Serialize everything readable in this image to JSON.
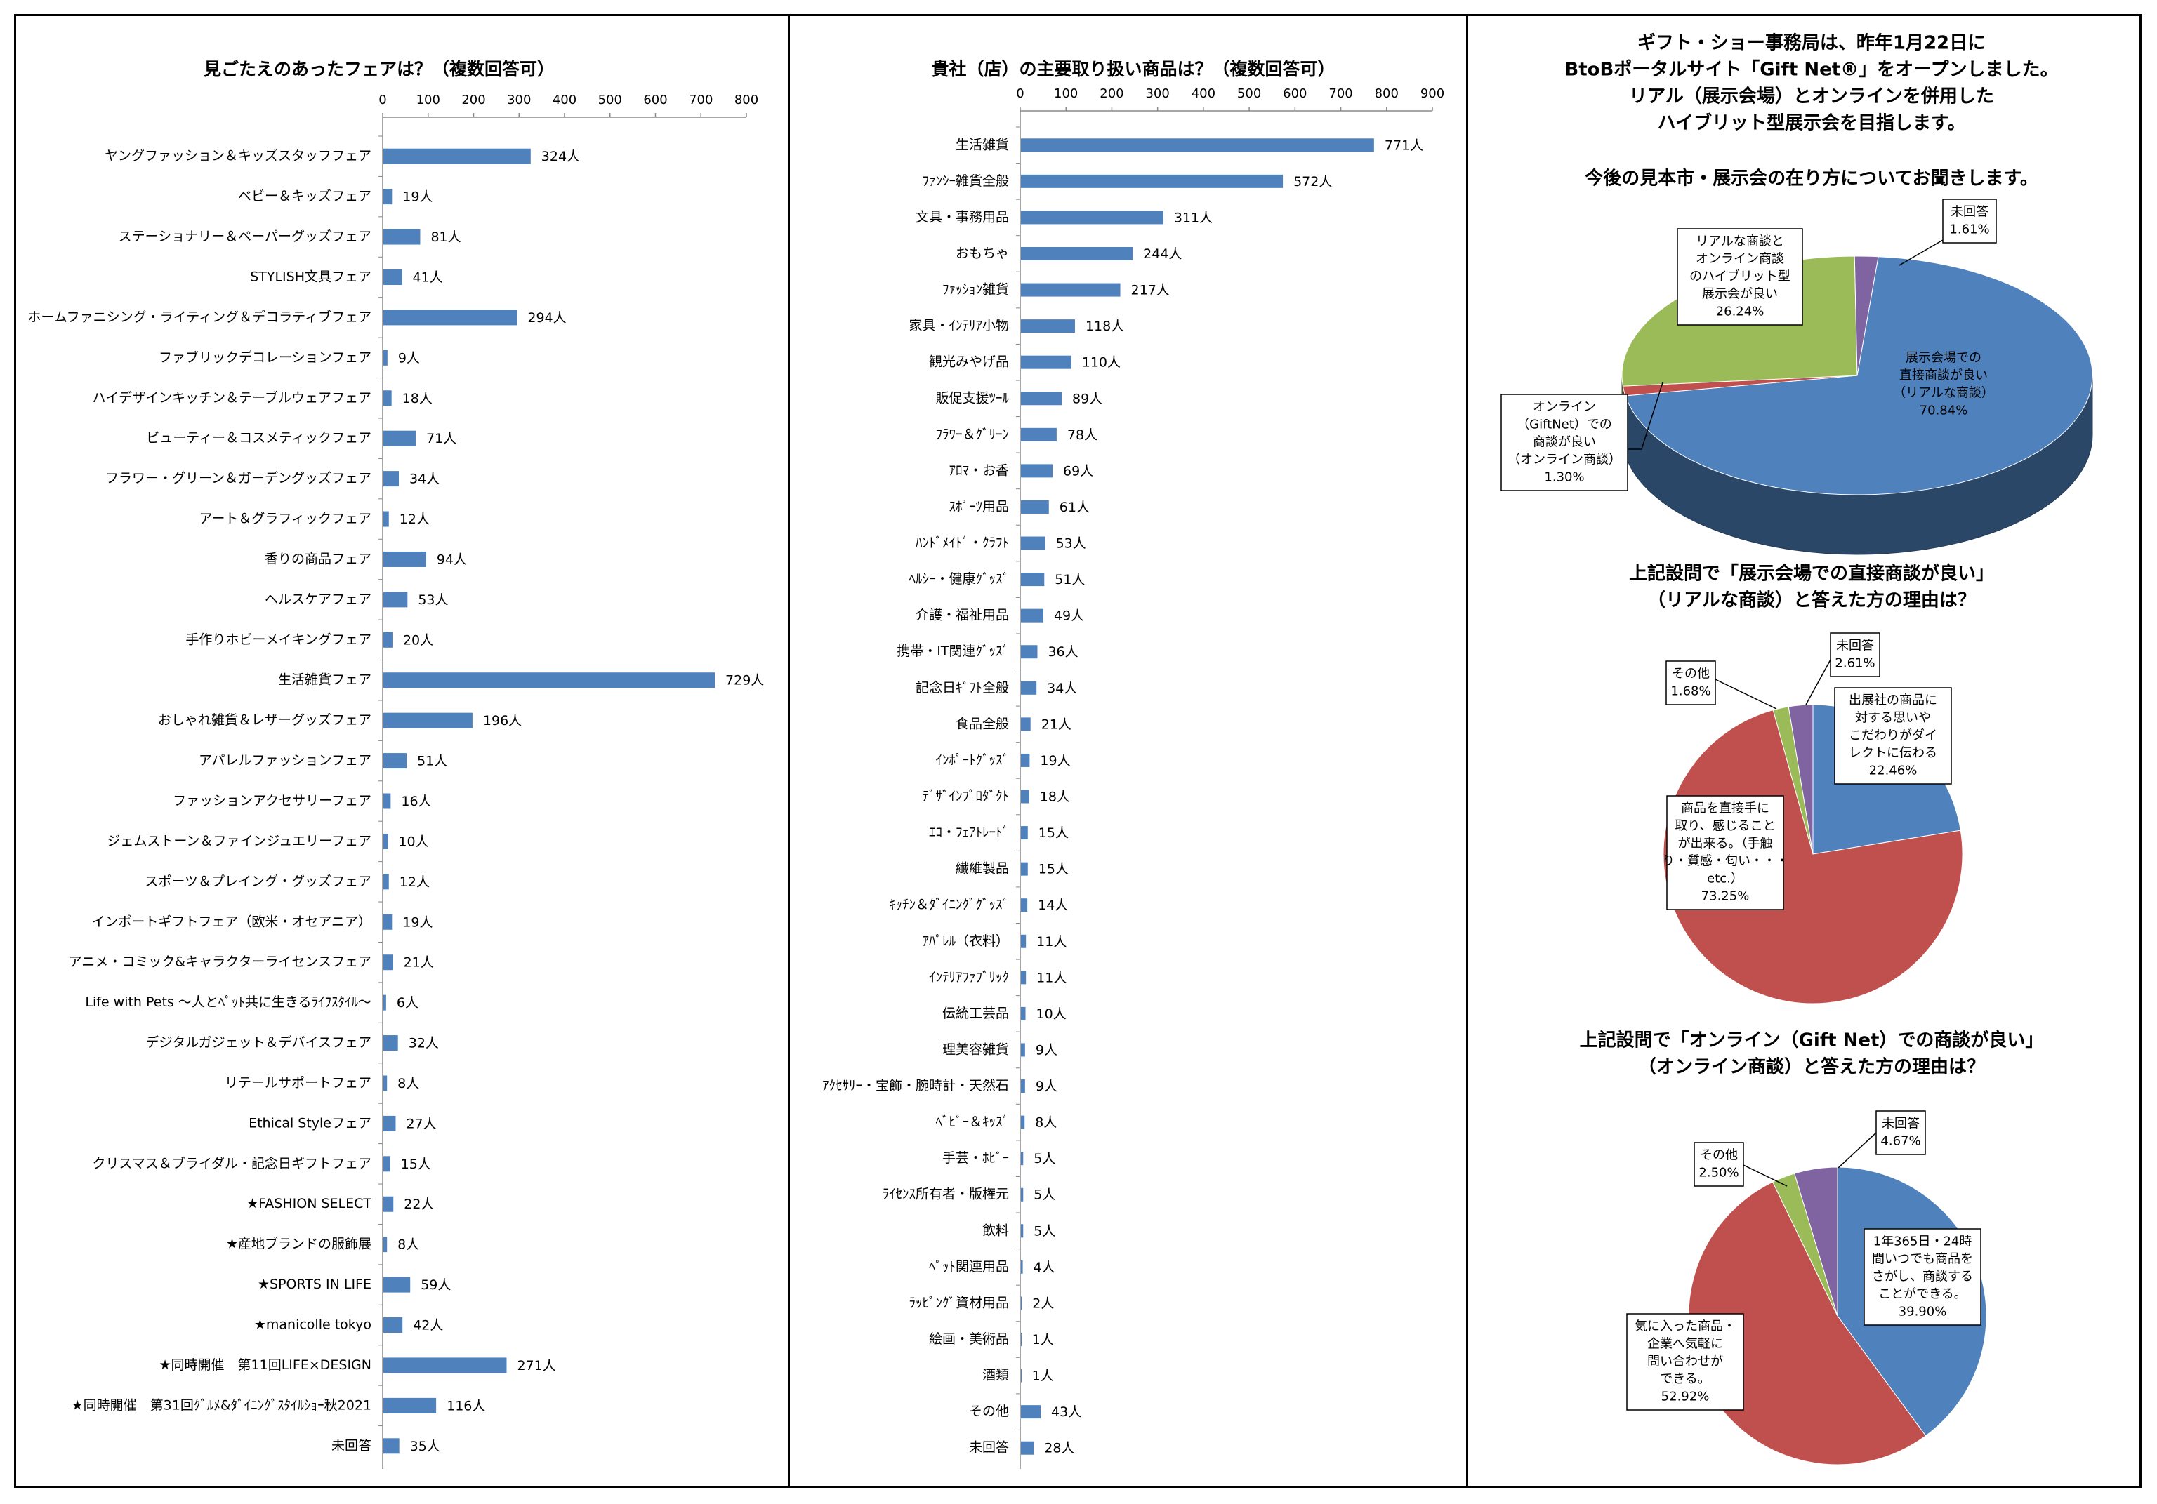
{
  "left_chart": {
    "title": "見ごたえのあったフェアは？（複数回答可）",
    "unit": "人",
    "ticks": [
      0,
      100,
      200,
      300,
      400,
      500,
      600,
      700,
      800
    ],
    "categories": [
      "ヤングファッション＆キッズスタッフフェア",
      "ベビー＆キッズフェア",
      "ステーショナリー＆ペーパーグッズフェア",
      "STYLISH文具フェア",
      "ホームファニシング・ライティング＆デコラティブフェア",
      "ファブリックデコレーションフェア",
      "ハイデザインキッチン＆テーブルウェアフェア",
      "ビューティー＆コスメティックフェア",
      "フラワー・グリーン＆ガーデングッズフェア",
      "アート＆グラフィックフェア",
      "香りの商品フェア",
      "ヘルスケアフェア",
      "手作りホビーメイキングフェア",
      "生活雑貨フェア",
      "おしゃれ雑貨＆レザーグッズフェア",
      "アパレルファッションフェア",
      "ファッションアクセサリーフェア",
      "ジェムストーン＆ファインジュエリーフェア",
      "スポーツ＆プレイング・グッズフェア",
      "インポートギフトフェア（欧米・オセアニア）",
      "アニメ・コミック&キャラクターライセンスフェア",
      "Life with Pets 〜人とﾍﾟｯﾄ共に生きるﾗｲﾌｽﾀｲﾙ〜",
      "デジタルガジェット＆デバイスフェア",
      "リテールサポートフェア",
      "Ethical Styleフェア",
      "クリスマス＆ブライダル・記念日ギフトフェア",
      "★FASHION SELECT",
      "★産地ブランドの服飾展",
      "★SPORTS IN LIFE",
      "★manicolle tokyo",
      "★同時開催　第11回LIFE×DESIGN",
      "★同時開催　第31回ｸﾞﾙﾒ&ﾀﾞｲﾆﾝｸﾞｽﾀｲﾙｼｮｰ秋2021",
      "未回答"
    ],
    "values": [
      324,
      19,
      81,
      41,
      294,
      9,
      18,
      71,
      34,
      12,
      94,
      53,
      20,
      729,
      196,
      51,
      16,
      10,
      12,
      19,
      21,
      6,
      32,
      8,
      27,
      15,
      22,
      8,
      59,
      42,
      271,
      116,
      35
    ]
  },
  "middle_chart": {
    "title": "貴社（店）の主要取り扱い商品は？（複数回答可）",
    "unit": "人",
    "ticks": [
      0,
      100,
      200,
      300,
      400,
      500,
      600,
      700,
      800,
      900
    ],
    "categories": [
      "生活雑貨",
      "ﾌｧﾝｼｰ雑貨全般",
      "文具・事務用品",
      "おもちゃ",
      "ﾌｧｯｼｮﾝ雑貨",
      "家具・ｲﾝﾃﾘｱ小物",
      "観光みやげ品",
      "販促支援ﾂｰﾙ",
      "ﾌﾗﾜｰ＆ｸﾞﾘｰﾝ",
      "ｱﾛﾏ・お香",
      "ｽﾎﾟｰﾂ用品",
      "ﾊﾝﾄﾞﾒｲﾄﾞ・ｸﾗﾌﾄ",
      "ﾍﾙｼｰ・健康ｸﾞｯｽﾞ",
      "介護・福祉用品",
      "携帯・IT関連ｸﾞｯｽﾞ",
      "記念日ｷﾞﾌﾄ全般",
      "食品全般",
      "ｲﾝﾎﾟｰﾄｸﾞｯｽﾞ",
      "ﾃﾞｻﾞｲﾝﾌﾟﾛﾀﾞｸﾄ",
      "ｴｺ・ﾌｪｱﾄﾚｰﾄﾞ",
      "繊維製品",
      "ｷｯﾁﾝ＆ﾀﾞｲﾆﾝｸﾞｸﾞｯｽﾞ",
      "ｱﾊﾟﾚﾙ（衣料）",
      "ｲﾝﾃﾘｱﾌｧﾌﾞﾘｯｸ",
      "伝統工芸品",
      "理美容雑貨",
      "ｱｸｾｻﾘｰ・宝飾・腕時計・天然石",
      "ﾍﾞﾋﾞｰ＆ｷｯｽﾞ",
      "手芸・ﾎﾋﾞｰ",
      "ﾗｲｾﾝｽ所有者・版権元",
      "飲料",
      "ﾍﾟｯﾄ関連用品",
      "ﾗｯﾋﾟﾝｸﾞ資材用品",
      "絵画・美術品",
      "酒類",
      "その他",
      "未回答"
    ],
    "values": [
      771,
      572,
      311,
      244,
      217,
      118,
      110,
      89,
      78,
      69,
      61,
      53,
      51,
      49,
      36,
      34,
      21,
      19,
      18,
      15,
      15,
      14,
      11,
      11,
      10,
      9,
      9,
      8,
      5,
      5,
      5,
      4,
      2,
      1,
      1,
      43,
      28
    ]
  },
  "right": {
    "intro": [
      "ギフト・ショー事務局は、昨年1月22日に",
      "BtoBポータルサイト「Gift Net®」をオープンしました。",
      "リアル（展示会場）とオンラインを併用した",
      "ハイブリット型展示会を目指します。"
    ],
    "pie1": {
      "title": "今後の見本市・展示会の在り方についてお聞きします。",
      "slices": [
        {
          "label": [
            "展示会場での",
            "直接商談が良い",
            "（リアルな商談）",
            "70.84%"
          ],
          "value": 70.84,
          "color": "#4f81bd"
        },
        {
          "label": [
            "オンライン",
            "（GiftNet）での",
            "商談が良い",
            "（オンライン商談）",
            "1.30%"
          ],
          "value": 1.3,
          "color": "#c0504d"
        },
        {
          "label": [
            "リアルな商談と",
            "オンライン商談",
            "のハイブリット型",
            "展示会が良い",
            "26.24%"
          ],
          "value": 26.24,
          "color": "#9bbb59"
        },
        {
          "label": [
            "未回答",
            "1.61%"
          ],
          "value": 1.61,
          "color": "#8064a2"
        }
      ]
    },
    "pie2": {
      "title": [
        "上記設問で「展示会場での直接商談が良い」",
        "（リアルな商談）と答えた方の理由は？"
      ],
      "slices": [
        {
          "label": [
            "出展社の商品に",
            "対する思いや",
            "こだわりがダイ",
            "レクトに伝わる",
            "22.46%"
          ],
          "value": 22.46,
          "color": "#4f81bd"
        },
        {
          "label": [
            "商品を直接手に",
            "取り、感じること",
            "が出来る。（手触",
            "り・質感・匂い・・・",
            "etc.）",
            "73.25%"
          ],
          "value": 73.25,
          "color": "#c0504d"
        },
        {
          "label": [
            "その他",
            "1.68%"
          ],
          "value": 1.68,
          "color": "#9bbb59"
        },
        {
          "label": [
            "未回答",
            "2.61%"
          ],
          "value": 2.61,
          "color": "#8064a2"
        }
      ]
    },
    "pie3": {
      "title": [
        "上記設問で「オンライン（Gift Net）での商談が良い」",
        "（オンライン商談）と答えた方の理由は？"
      ],
      "slices": [
        {
          "label": [
            "1年365日・24時",
            "間いつでも商品を",
            "さがし、商談する",
            "ことができる。",
            "39.90%"
          ],
          "value": 39.9,
          "color": "#4f81bd"
        },
        {
          "label": [
            "気に入った商品・",
            "企業へ気軽に",
            "問い合わせが",
            "できる。",
            "52.92%"
          ],
          "value": 52.92,
          "color": "#c0504d"
        },
        {
          "label": [
            "その他",
            "2.50%"
          ],
          "value": 2.5,
          "color": "#9bbb59"
        },
        {
          "label": [
            "未回答",
            "4.67%"
          ],
          "value": 4.67,
          "color": "#8064a2"
        }
      ]
    }
  },
  "chart_data": [
    {
      "type": "bar",
      "orientation": "horizontal",
      "title": "見ごたえのあったフェアは？（複数回答可）",
      "xlim": [
        0,
        800
      ]
    },
    {
      "type": "bar",
      "orientation": "horizontal",
      "title": "貴社（店）の主要取り扱い商品は？（複数回答可）",
      "xlim": [
        0,
        900
      ]
    },
    {
      "type": "pie",
      "title": "今後の見本市・展示会の在り方についてお聞きします。",
      "slices": [
        {
          "label": "展示会場での直接商談が良い（リアルな商談）",
          "value": 70.84
        },
        {
          "label": "オンライン（GiftNet）での商談が良い（オンライン商談）",
          "value": 1.3
        },
        {
          "label": "リアルな商談とオンライン商談のハイブリット型展示会が良い",
          "value": 26.24
        },
        {
          "label": "未回答",
          "value": 1.61
        }
      ]
    },
    {
      "type": "pie",
      "title": "上記設問で「展示会場での直接商談が良い」（リアルな商談）と答えた方の理由は？",
      "slices": [
        {
          "label": "出展社の商品に対する思いやこだわりがダイレクトに伝わる",
          "value": 22.46
        },
        {
          "label": "商品を直接手に取り、感じることが出来る。（手触り・質感・匂い・・・etc.）",
          "value": 73.25
        },
        {
          "label": "その他",
          "value": 1.68
        },
        {
          "label": "未回答",
          "value": 2.61
        }
      ]
    },
    {
      "type": "pie",
      "title": "上記設問で「オンライン（Gift Net）での商談が良い」（オンライン商談）と答えた方の理由は？",
      "slices": [
        {
          "label": "1年365日・24時間いつでも商品をさがし、商談することができる。",
          "value": 39.9
        },
        {
          "label": "気に入った商品・企業へ気軽に問い合わせができる。",
          "value": 52.92
        },
        {
          "label": "その他",
          "value": 2.5
        },
        {
          "label": "未回答",
          "value": 4.67
        }
      ]
    }
  ]
}
